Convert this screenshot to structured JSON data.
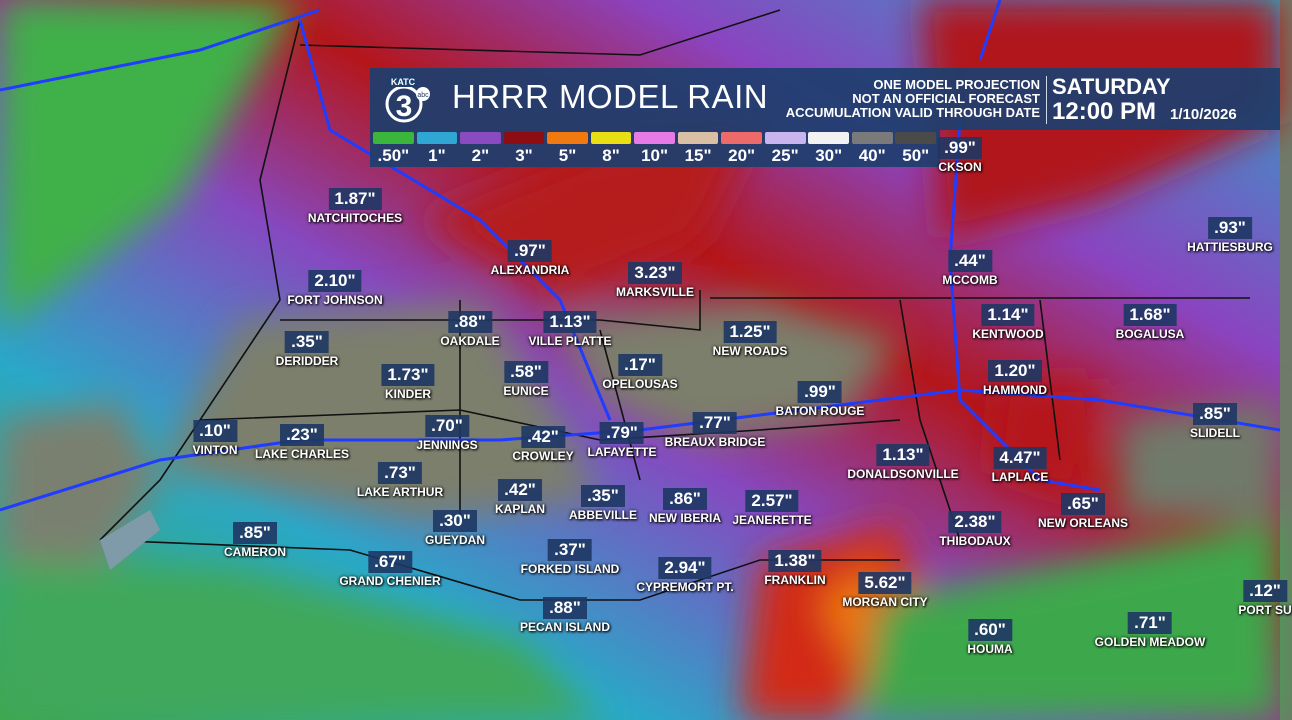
{
  "header": {
    "logo_text": "KATC 3 abc",
    "title": "HRRR MODEL RAIN",
    "disclaimer": [
      "ONE MODEL PROJECTION",
      "NOT AN OFFICIAL FORECAST",
      "ACCUMULATION VALID THROUGH DATE"
    ],
    "day": "SATURDAY",
    "time": "12:00 PM",
    "date": "1/10/2026"
  },
  "legend": [
    {
      "label": ".50\"",
      "color": "#3cb53c"
    },
    {
      "label": "1\"",
      "color": "#2fa6d4"
    },
    {
      "label": "2\"",
      "color": "#8a4bc0"
    },
    {
      "label": "3\"",
      "color": "#8e0d12"
    },
    {
      "label": "5\"",
      "color": "#f07a10"
    },
    {
      "label": "8\"",
      "color": "#e8e012"
    },
    {
      "label": "10\"",
      "color": "#e77be6"
    },
    {
      "label": "15\"",
      "color": "#d9bfa3"
    },
    {
      "label": "20\"",
      "color": "#ec6a6a"
    },
    {
      "label": "25\"",
      "color": "#c9b5ee"
    },
    {
      "label": "30\"",
      "color": "#f2f2f2"
    },
    {
      "label": "40\"",
      "color": "#7a7a7a"
    },
    {
      "label": "50\"",
      "color": "#4a4a4a"
    }
  ],
  "cities": [
    {
      "value": ".99\"",
      "name": "CKSON"
    },
    {
      "value": "1.87\"",
      "name": "NATCHITOCHES"
    },
    {
      "value": ".97\"",
      "name": "ALEXANDRIA"
    },
    {
      "value": "3.23\"",
      "name": "MARKSVILLE"
    },
    {
      "value": ".93\"",
      "name": "HATTIESBURG"
    },
    {
      "value": ".44\"",
      "name": "MCCOMB"
    },
    {
      "value": "2.10\"",
      "name": "FORT JOHNSON"
    },
    {
      "value": ".88\"",
      "name": "OAKDALE"
    },
    {
      "value": "1.13\"",
      "name": "VILLE PLATTE"
    },
    {
      "value": "1.14\"",
      "name": "KENTWOOD"
    },
    {
      "value": "1.68\"",
      "name": "BOGALUSA"
    },
    {
      "value": ".35\"",
      "name": "DERIDDER"
    },
    {
      "value": "1.25\"",
      "name": "NEW ROADS"
    },
    {
      "value": "1.73\"",
      "name": "KINDER"
    },
    {
      "value": ".58\"",
      "name": "EUNICE"
    },
    {
      "value": ".17\"",
      "name": "OPELOUSAS"
    },
    {
      "value": "1.20\"",
      "name": "HAMMOND"
    },
    {
      "value": ".99\"",
      "name": "BATON ROUGE"
    },
    {
      "value": ".85\"",
      "name": "SLIDELL"
    },
    {
      "value": ".10\"",
      "name": "VINTON"
    },
    {
      "value": ".23\"",
      "name": "LAKE CHARLES"
    },
    {
      "value": ".70\"",
      "name": "JENNINGS"
    },
    {
      "value": ".42\"",
      "name": "CROWLEY"
    },
    {
      "value": ".79\"",
      "name": "LAFAYETTE"
    },
    {
      "value": ".77\"",
      "name": "BREAUX BRIDGE"
    },
    {
      "value": "1.13\"",
      "name": "DONALDSONVILLE"
    },
    {
      "value": "4.47\"",
      "name": "LAPLACE"
    },
    {
      "value": ".73\"",
      "name": "LAKE ARTHUR"
    },
    {
      "value": ".42\"",
      "name": "KAPLAN"
    },
    {
      "value": ".35\"",
      "name": "ABBEVILLE"
    },
    {
      "value": ".86\"",
      "name": "NEW IBERIA"
    },
    {
      "value": "2.57\"",
      "name": "JEANERETTE"
    },
    {
      "value": ".65\"",
      "name": "NEW ORLEANS"
    },
    {
      "value": ".30\"",
      "name": "GUEYDAN"
    },
    {
      "value": ".85\"",
      "name": "CAMERON"
    },
    {
      "value": "2.38\"",
      "name": "THIBODAUX"
    },
    {
      "value": ".37\"",
      "name": "FORKED ISLAND"
    },
    {
      "value": ".67\"",
      "name": "GRAND CHENIER"
    },
    {
      "value": "2.94\"",
      "name": "CYPREMORT PT."
    },
    {
      "value": "1.38\"",
      "name": "FRANKLIN"
    },
    {
      "value": "5.62\"",
      "name": "MORGAN CITY"
    },
    {
      "value": ".88\"",
      "name": "PECAN ISLAND"
    },
    {
      "value": ".60\"",
      "name": "HOUMA"
    },
    {
      "value": ".71\"",
      "name": "GOLDEN MEADOW"
    },
    {
      "value": ".12\"",
      "name": "PORT SU"
    }
  ]
}
